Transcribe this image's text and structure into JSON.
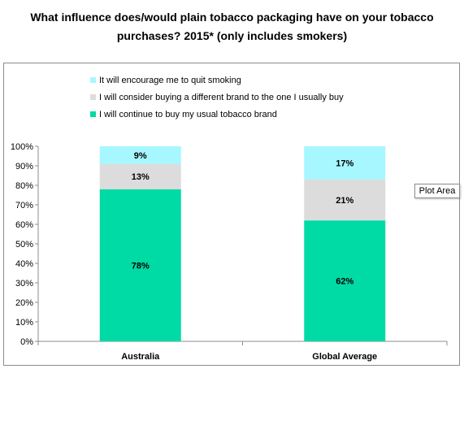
{
  "title": {
    "line1": "What influence does/would plain tobacco packaging have on your tobacco",
    "line2": "purchases? 2015* (only includes smokers)"
  },
  "tooltip": "Plot Area",
  "colors": {
    "continue": "#00dba6",
    "consider": "#dcdcdc",
    "quit": "#a6f7ff",
    "axis": "#8c8c8c"
  },
  "chart_data": {
    "type": "bar",
    "stacked": true,
    "categories": [
      "Australia",
      "Global Average"
    ],
    "series": [
      {
        "name": "I will continue to buy my usual tobacco brand",
        "values": [
          78,
          62
        ]
      },
      {
        "name": "I will consider buying a different brand to the one I usually buy",
        "values": [
          13,
          21
        ]
      },
      {
        "name": "It will encourage me to quit smoking",
        "values": [
          9,
          17
        ]
      }
    ],
    "data_labels": [
      [
        "78%",
        "62%"
      ],
      [
        "13%",
        "21%"
      ],
      [
        "9%",
        "17%"
      ]
    ],
    "ylim": [
      0,
      100
    ],
    "yticks": [
      "0%",
      "10%",
      "20%",
      "30%",
      "40%",
      "50%",
      "60%",
      "70%",
      "80%",
      "90%",
      "100%"
    ],
    "legend_order": [
      2,
      1,
      0
    ],
    "legend_position": "top",
    "grid": false
  }
}
